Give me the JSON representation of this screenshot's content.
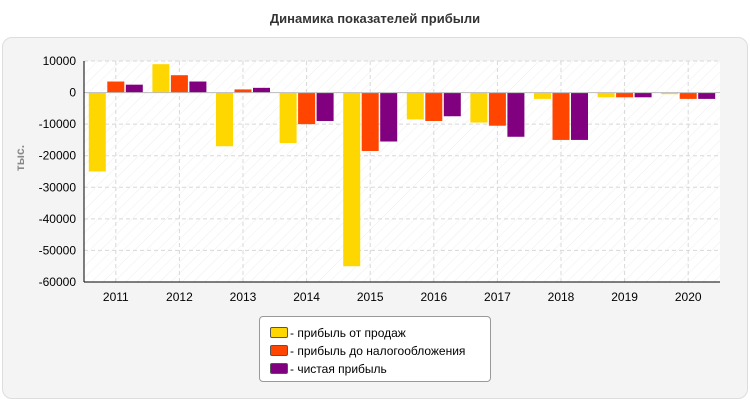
{
  "chart_data": {
    "type": "bar",
    "title": "Динамика показателей прибыли",
    "ylabel": "тыс.",
    "xlabel": "",
    "categories": [
      "2011",
      "2012",
      "2013",
      "2014",
      "2015",
      "2016",
      "2017",
      "2018",
      "2019",
      "2020"
    ],
    "yticks": [
      "10000",
      "0",
      "-10000",
      "-20000",
      "-30000",
      "-40000",
      "-50000",
      "-60000"
    ],
    "ylim": [
      -60000,
      10000
    ],
    "grid": true,
    "legend_position": "bottom-center",
    "series": [
      {
        "name": "- прибыль от продаж",
        "color": "#FFD700",
        "values": [
          -25000,
          9000,
          -17000,
          -16000,
          -55000,
          -8500,
          -9500,
          -2000,
          -1500,
          -500
        ]
      },
      {
        "name": "- прибыль до налогообложения",
        "color": "#FF4500",
        "values": [
          3500,
          5500,
          1000,
          -10000,
          -18500,
          -9000,
          -10500,
          -15000,
          -1500,
          -2000
        ]
      },
      {
        "name": "- чистая прибыль",
        "color": "#800080",
        "values": [
          2500,
          3500,
          1500,
          -9000,
          -15500,
          -7500,
          -14000,
          -15000,
          -1500,
          -2000
        ]
      }
    ]
  }
}
